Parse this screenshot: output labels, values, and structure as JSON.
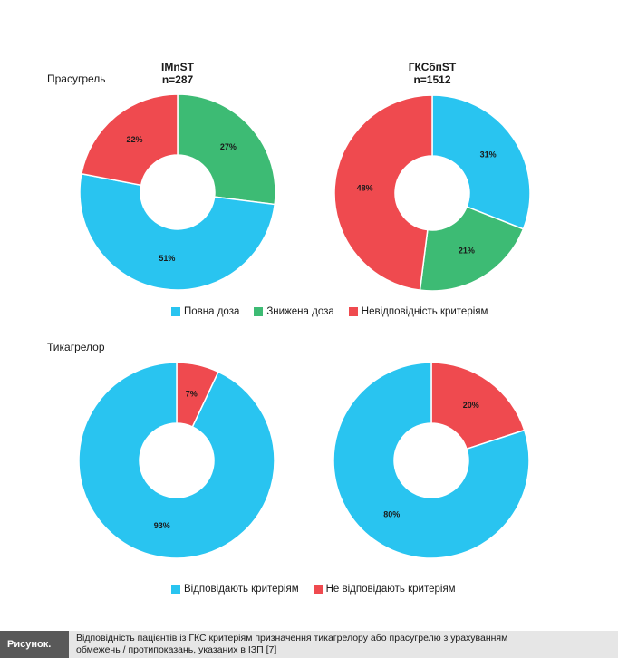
{
  "colors": {
    "full_dose": "#29c4f0",
    "reduced_dose": "#3dbb74",
    "not_meeting": "#ef4a4f",
    "meets": "#29c4f0"
  },
  "headers": {
    "imnst": {
      "line1": "IMnST",
      "line2": "n=287"
    },
    "gksbnst": {
      "line1": "ГКСбпST",
      "line2": "n=1512"
    }
  },
  "rows": {
    "prasugrel": "Прасугрель",
    "ticagrelor": "Тикагрелор"
  },
  "legend_prasugrel": [
    {
      "label": "Повна доза",
      "color": "#29c4f0"
    },
    {
      "label": "Знижена доза",
      "color": "#3dbb74"
    },
    {
      "label": "Невідповідність критеріям",
      "color": "#ef4a4f"
    }
  ],
  "legend_ticagrelor": [
    {
      "label": "Відповідають критеріям",
      "color": "#29c4f0"
    },
    {
      "label": "Не відповідають критеріям",
      "color": "#ef4a4f"
    }
  ],
  "caption": {
    "label": "Рисунок.",
    "line1": "Відповідність пацієнтів із ГКС критеріям призначення тикагрелору або прасугрелю з урахуванням",
    "line2": "обмежень / протипоказань, указаних в ІЗП [7]"
  },
  "chart_data": [
    {
      "type": "pie",
      "variant": "donut",
      "row": "Прасугрель",
      "column": "IMnST n=287",
      "slices": [
        {
          "name": "Знижена доза",
          "value": 27,
          "label": "27%",
          "color": "#3dbb74"
        },
        {
          "name": "Повна доза",
          "value": 51,
          "label": "51%",
          "color": "#29c4f0"
        },
        {
          "name": "Невідповідність критеріям",
          "value": 22,
          "label": "22%",
          "color": "#ef4a4f"
        }
      ]
    },
    {
      "type": "pie",
      "variant": "donut",
      "row": "Прасугрель",
      "column": "ГКСбпST n=1512",
      "slices": [
        {
          "name": "Повна доза",
          "value": 31,
          "label": "31%",
          "color": "#29c4f0"
        },
        {
          "name": "Знижена доза",
          "value": 21,
          "label": "21%",
          "color": "#3dbb74"
        },
        {
          "name": "Невідповідність критеріям",
          "value": 48,
          "label": "48%",
          "color": "#ef4a4f"
        }
      ]
    },
    {
      "type": "pie",
      "variant": "donut",
      "row": "Тикагрелор",
      "column": "IMnST n=287",
      "slices": [
        {
          "name": "Не відповідають критеріям",
          "value": 7,
          "label": "7%",
          "color": "#ef4a4f"
        },
        {
          "name": "Відповідають критеріям",
          "value": 93,
          "label": "93%",
          "color": "#29c4f0"
        }
      ]
    },
    {
      "type": "pie",
      "variant": "donut",
      "row": "Тикагрелор",
      "column": "ГКСбпST n=1512",
      "slices": [
        {
          "name": "Не відповідають критеріям",
          "value": 20,
          "label": "20%",
          "color": "#ef4a4f"
        },
        {
          "name": "Відповідають критеріям",
          "value": 80,
          "label": "80%",
          "color": "#29c4f0"
        }
      ]
    }
  ]
}
